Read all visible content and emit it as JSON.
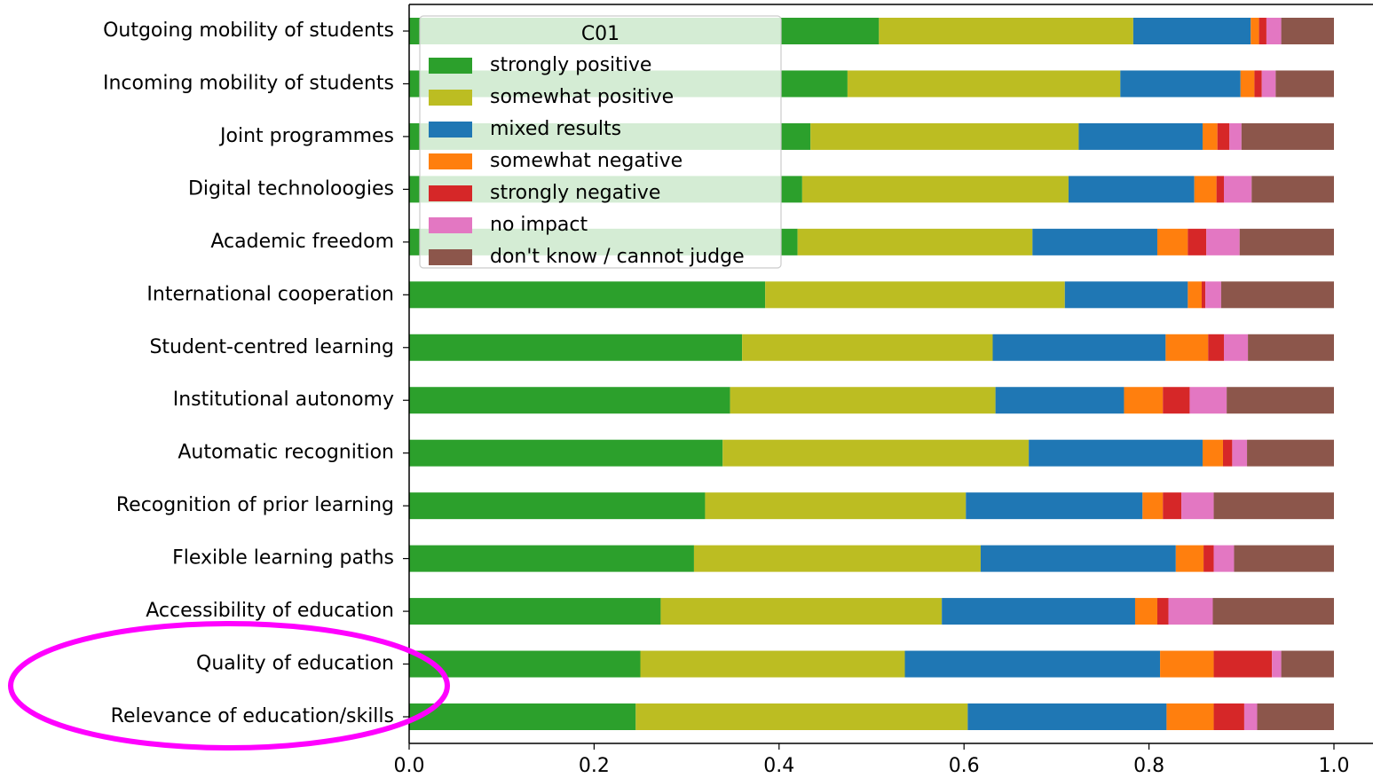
{
  "chart_data": {
    "type": "stacked-barh",
    "categories": [
      "Outgoing mobility of students",
      "Incoming mobility of students",
      "Joint programmes",
      "Digital technoloogies",
      "Academic freedom",
      "International cooperation",
      "Student-centred learning",
      "Institutional autonomy",
      "Automatic recognition",
      "Recognition of prior learning",
      "Flexible learning paths",
      "Accessibility of education",
      "Quality of education",
      "Relevance of education/skills"
    ],
    "series": [
      {
        "name": "strongly positive",
        "color": "#2ca02c",
        "values": [
          0.508,
          0.474,
          0.434,
          0.425,
          0.42,
          0.385,
          0.36,
          0.347,
          0.339,
          0.32,
          0.308,
          0.272,
          0.25,
          0.245
        ]
      },
      {
        "name": "somewhat positive",
        "color": "#bcbd22",
        "values": [
          0.275,
          0.295,
          0.29,
          0.288,
          0.254,
          0.324,
          0.271,
          0.287,
          0.331,
          0.282,
          0.31,
          0.304,
          0.286,
          0.359
        ]
      },
      {
        "name": "mixed results",
        "color": "#1f77b4",
        "values": [
          0.127,
          0.13,
          0.134,
          0.136,
          0.135,
          0.133,
          0.187,
          0.139,
          0.188,
          0.191,
          0.211,
          0.209,
          0.276,
          0.215
        ]
      },
      {
        "name": "somewhat negative",
        "color": "#ff7f0e",
        "values": [
          0.009,
          0.015,
          0.016,
          0.024,
          0.033,
          0.015,
          0.046,
          0.042,
          0.022,
          0.022,
          0.03,
          0.024,
          0.058,
          0.051
        ]
      },
      {
        "name": "strongly negative",
        "color": "#d62728",
        "values": [
          0.008,
          0.008,
          0.013,
          0.008,
          0.02,
          0.004,
          0.017,
          0.029,
          0.01,
          0.02,
          0.011,
          0.012,
          0.063,
          0.033
        ]
      },
      {
        "name": "no impact",
        "color": "#e377c2",
        "values": [
          0.016,
          0.015,
          0.013,
          0.03,
          0.036,
          0.017,
          0.026,
          0.04,
          0.016,
          0.035,
          0.022,
          0.048,
          0.01,
          0.014
        ]
      },
      {
        "name": "don't know / cannot judge",
        "color": "#8c564b",
        "values": [
          0.057,
          0.063,
          0.1,
          0.089,
          0.102,
          0.122,
          0.093,
          0.116,
          0.094,
          0.13,
          0.108,
          0.131,
          0.057,
          0.083
        ]
      }
    ],
    "legend_title": "C01",
    "legend": "upper left",
    "xlim": [
      0,
      1.04
    ],
    "xticks": [
      {
        "value": 0,
        "label": "0.0"
      },
      0.2,
      0.4,
      0.6,
      0.8,
      {
        "value": 1,
        "label": "1.0"
      }
    ]
  }
}
